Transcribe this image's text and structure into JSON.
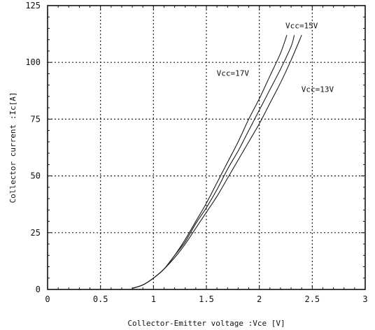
{
  "chart_data": {
    "type": "line",
    "title": "",
    "xlabel": "Collector-Emitter voltage :Vce [V]",
    "ylabel": "Collector current :Ic[A]",
    "xlim": [
      0,
      3
    ],
    "ylim": [
      0,
      125
    ],
    "x_ticks": [
      0,
      0.5,
      1,
      1.5,
      2,
      2.5,
      3
    ],
    "x_tick_labels": [
      "0",
      "0.5",
      "1",
      "1.5",
      "2",
      "2.5",
      "3"
    ],
    "y_ticks": [
      0,
      25,
      50,
      75,
      100,
      125
    ],
    "y_tick_labels": [
      "0",
      "25",
      "50",
      "75",
      "100",
      "125"
    ],
    "grid": true,
    "series": [
      {
        "name": "Vcc=17V",
        "x": [
          0.8,
          0.9,
          1.0,
          1.1,
          1.2,
          1.3,
          1.4,
          1.5,
          1.6,
          1.7,
          1.8,
          1.9,
          2.0,
          2.1,
          2.2,
          2.26
        ],
        "y": [
          0.5,
          2,
          5,
          9,
          15,
          22,
          30,
          38,
          47,
          56,
          65,
          75,
          84,
          94,
          104,
          112
        ]
      },
      {
        "name": "Vcc=15V",
        "x": [
          0.8,
          0.9,
          1.0,
          1.1,
          1.2,
          1.3,
          1.4,
          1.5,
          1.6,
          1.7,
          1.8,
          1.9,
          2.0,
          2.1,
          2.2,
          2.3,
          2.33
        ],
        "y": [
          0.5,
          2,
          5,
          9,
          15,
          21,
          29,
          36,
          44,
          53,
          61,
          70,
          79,
          88,
          97,
          107,
          112
        ]
      },
      {
        "name": "Vcc=13V",
        "x": [
          0.8,
          0.9,
          1.0,
          1.1,
          1.2,
          1.3,
          1.4,
          1.5,
          1.6,
          1.7,
          1.8,
          1.9,
          2.0,
          2.1,
          2.2,
          2.3,
          2.4
        ],
        "y": [
          0.5,
          2,
          5,
          9,
          14,
          20,
          27,
          34,
          41,
          49,
          57,
          65,
          73,
          82,
          91,
          101,
          112
        ]
      }
    ],
    "annotations": [
      {
        "text": "Vcc=15V",
        "x": 2.4,
        "y": 115
      },
      {
        "text": "Vcc=17V",
        "x": 1.75,
        "y": 94
      },
      {
        "text": "Vcc=13V",
        "x": 2.55,
        "y": 87
      }
    ]
  }
}
